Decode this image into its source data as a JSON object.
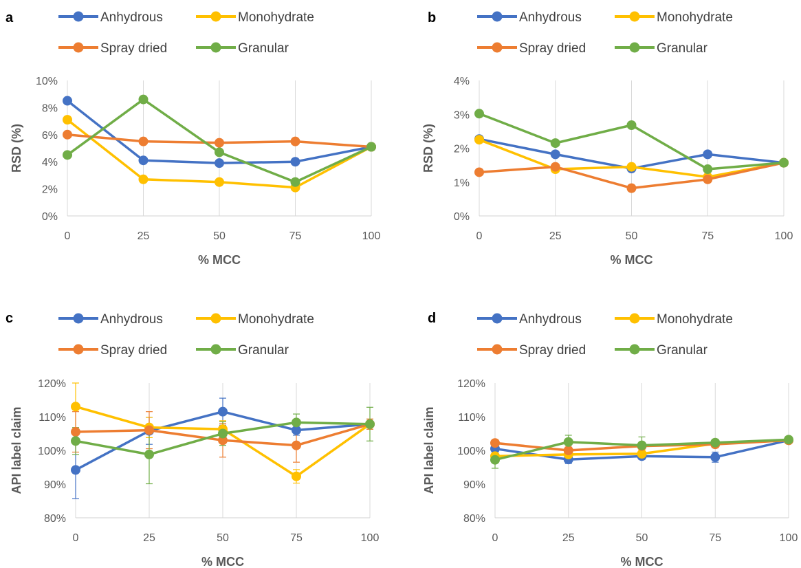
{
  "chart_data": [
    {
      "type": "line",
      "panel_label": "a",
      "xlabel": "% MCC",
      "ylabel": "RSD (%)",
      "x": [
        0,
        25,
        50,
        75,
        100
      ],
      "xticks": [
        "0",
        "25",
        "50",
        "75",
        "100"
      ],
      "ylim": [
        0,
        10
      ],
      "yticks": [
        0,
        2,
        4,
        6,
        8,
        10
      ],
      "ytick_labels": [
        "0%",
        "2%",
        "4%",
        "6%",
        "8%",
        "10%"
      ],
      "grid": "vertical",
      "legend": "top",
      "series": [
        {
          "name": "Anhydrous",
          "color": "#4472C4",
          "values": [
            8.5,
            4.1,
            3.9,
            4.0,
            5.1
          ]
        },
        {
          "name": "Monohydrate",
          "color": "#FFC000",
          "values": [
            7.1,
            2.7,
            2.5,
            2.1,
            5.1
          ]
        },
        {
          "name": "Spray dried",
          "color": "#ED7D31",
          "values": [
            6.0,
            5.5,
            5.4,
            5.5,
            5.1
          ]
        },
        {
          "name": "Granular",
          "color": "#70AD47",
          "values": [
            4.5,
            8.6,
            4.7,
            2.5,
            5.1
          ]
        }
      ]
    },
    {
      "type": "line",
      "panel_label": "b",
      "xlabel": "% MCC",
      "ylabel": "RSD (%)",
      "x": [
        0,
        25,
        50,
        75,
        100
      ],
      "xticks": [
        "0",
        "25",
        "50",
        "75",
        "100"
      ],
      "ylim": [
        0,
        4
      ],
      "yticks": [
        0,
        1,
        2,
        3,
        4
      ],
      "ytick_labels": [
        "0%",
        "1%",
        "2%",
        "3%",
        "4%"
      ],
      "grid": "vertical",
      "legend": "top",
      "series": [
        {
          "name": "Anhydrous",
          "color": "#4472C4",
          "values": [
            2.27,
            1.82,
            1.4,
            1.82,
            1.57
          ]
        },
        {
          "name": "Monohydrate",
          "color": "#FFC000",
          "values": [
            2.25,
            1.38,
            1.45,
            1.15,
            1.57
          ]
        },
        {
          "name": "Spray dried",
          "color": "#ED7D31",
          "values": [
            1.29,
            1.45,
            0.82,
            1.08,
            1.57
          ]
        },
        {
          "name": "Granular",
          "color": "#70AD47",
          "values": [
            3.02,
            2.15,
            2.68,
            1.38,
            1.57
          ]
        }
      ]
    },
    {
      "type": "line",
      "panel_label": "c",
      "xlabel": "% MCC",
      "ylabel": "API label claim",
      "x": [
        0,
        25,
        50,
        75,
        100
      ],
      "xticks": [
        "0",
        "25",
        "50",
        "75",
        "100"
      ],
      "ylim": [
        80,
        120
      ],
      "yticks": [
        80,
        90,
        100,
        110,
        120
      ],
      "ytick_labels": [
        "80%",
        "90%",
        "100%",
        "110%",
        "120%"
      ],
      "grid": "vertical",
      "legend": "top",
      "series": [
        {
          "name": "Anhydrous",
          "color": "#4472C4",
          "values": [
            94.2,
            105.8,
            111.5,
            106.0,
            107.8
          ],
          "error": [
            8.5,
            4.0,
            4.0,
            1.5,
            1.5
          ]
        },
        {
          "name": "Monohydrate",
          "color": "#FFC000",
          "values": [
            113.0,
            106.8,
            106.3,
            92.3,
            107.8
          ],
          "error": [
            7.0,
            3.0,
            2.5,
            2.0,
            1.5
          ]
        },
        {
          "name": "Spray dried",
          "color": "#ED7D31",
          "values": [
            105.5,
            106.0,
            103.0,
            101.5,
            107.8
          ],
          "error": [
            6.0,
            5.5,
            5.0,
            5.0,
            1.5
          ]
        },
        {
          "name": "Granular",
          "color": "#70AD47",
          "values": [
            102.8,
            98.8,
            105.0,
            108.3,
            107.8
          ],
          "error": [
            4.0,
            8.7,
            3.5,
            2.5,
            5.0
          ]
        }
      ]
    },
    {
      "type": "line",
      "panel_label": "d",
      "xlabel": "% MCC",
      "ylabel": "API label claim",
      "x": [
        0,
        25,
        50,
        75,
        100
      ],
      "xticks": [
        "0",
        "25",
        "50",
        "75",
        "100"
      ],
      "ylim": [
        80,
        120
      ],
      "yticks": [
        80,
        90,
        100,
        110,
        120
      ],
      "ytick_labels": [
        "80%",
        "90%",
        "100%",
        "110%",
        "120%"
      ],
      "grid": "vertical",
      "legend": "top",
      "series": [
        {
          "name": "Anhydrous",
          "color": "#4472C4",
          "values": [
            100.5,
            97.3,
            98.3,
            98.0,
            103.0
          ],
          "error": [
            1.0,
            1.2,
            1.0,
            1.5,
            0.8
          ]
        },
        {
          "name": "Monohydrate",
          "color": "#FFC000",
          "values": [
            98.3,
            98.8,
            99.0,
            102.0,
            103.0
          ],
          "error": [
            1.0,
            1.0,
            1.0,
            1.0,
            0.8
          ]
        },
        {
          "name": "Spray dried",
          "color": "#ED7D31",
          "values": [
            102.2,
            100.0,
            101.3,
            101.8,
            103.0
          ],
          "error": [
            1.0,
            1.0,
            1.0,
            1.0,
            0.8
          ]
        },
        {
          "name": "Granular",
          "color": "#70AD47",
          "values": [
            97.2,
            102.5,
            101.5,
            102.3,
            103.2
          ],
          "error": [
            2.5,
            2.0,
            2.5,
            1.0,
            0.8
          ]
        }
      ]
    }
  ]
}
